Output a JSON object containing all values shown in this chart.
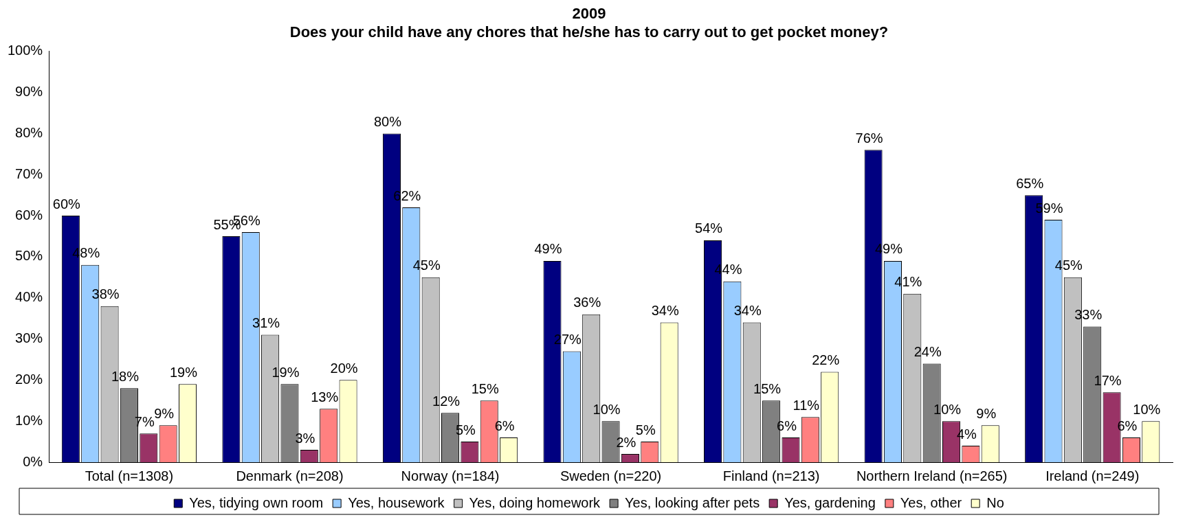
{
  "chart_data": {
    "type": "bar",
    "title": "2009",
    "subtitle": "Does your child have any chores that he/she has to carry out to get pocket money?",
    "categories": [
      "Total (n=1308)",
      "Denmark (n=208)",
      "Norway (n=184)",
      "Sweden (n=220)",
      "Finland (n=213)",
      "Northern Ireland (n=265)",
      "Ireland (n=249)"
    ],
    "series": [
      {
        "name": "Yes, tidying own room",
        "color": "#000080",
        "values": [
          60,
          55,
          80,
          49,
          54,
          76,
          65
        ],
        "value_labels": [
          "60%",
          "55%",
          "80%",
          "49%",
          "54%",
          "76%",
          "65%"
        ]
      },
      {
        "name": "Yes, housework",
        "color": "#99ccff",
        "values": [
          48,
          56,
          62,
          27,
          44,
          49,
          59
        ],
        "value_labels": [
          "48%",
          "56%",
          "62%",
          "27%",
          "44%",
          "49%",
          "59%"
        ]
      },
      {
        "name": "Yes, doing homework",
        "color": "#c0c0c0",
        "values": [
          38,
          31,
          45,
          36,
          34,
          41,
          45
        ],
        "value_labels": [
          "38%",
          "31%",
          "45%",
          "36%",
          "34%",
          "41%",
          "45%"
        ]
      },
      {
        "name": "Yes, looking after pets",
        "color": "#808080",
        "values": [
          18,
          19,
          12,
          10,
          15,
          24,
          33
        ],
        "value_labels": [
          "18%",
          "19%",
          "12%",
          "10%",
          "15%",
          "24%",
          "33%"
        ]
      },
      {
        "name": "Yes, gardening",
        "color": "#993366",
        "values": [
          7,
          3,
          5,
          2,
          6,
          10,
          17
        ],
        "value_labels": [
          "7%",
          "3%",
          "5%",
          "2%",
          "6%",
          "10%",
          "17%"
        ]
      },
      {
        "name": "Yes, other",
        "color": "#ff8080",
        "values": [
          9,
          13,
          15,
          5,
          11,
          4,
          6
        ],
        "value_labels": [
          "9%",
          "13%",
          "15%",
          "5%",
          "11%",
          "4%",
          "6%"
        ]
      },
      {
        "name": "No",
        "color": "#ffffcc",
        "values": [
          19,
          20,
          6,
          34,
          22,
          9,
          10
        ],
        "value_labels": [
          "19%",
          "20%",
          "6%",
          "34%",
          "22%",
          "9%",
          "10%"
        ]
      }
    ],
    "ylim": [
      0,
      100
    ],
    "yticks": [
      {
        "value": 0,
        "label": "0%"
      },
      {
        "value": 10,
        "label": "10%"
      },
      {
        "value": 20,
        "label": "20%"
      },
      {
        "value": 30,
        "label": "30%"
      },
      {
        "value": 40,
        "label": "40%"
      },
      {
        "value": 50,
        "label": "50%"
      },
      {
        "value": 60,
        "label": "60%"
      },
      {
        "value": 70,
        "label": "70%"
      },
      {
        "value": 80,
        "label": "80%"
      },
      {
        "value": 90,
        "label": "90%"
      },
      {
        "value": 100,
        "label": "100%"
      }
    ],
    "grid": false,
    "legend": "bottom"
  }
}
